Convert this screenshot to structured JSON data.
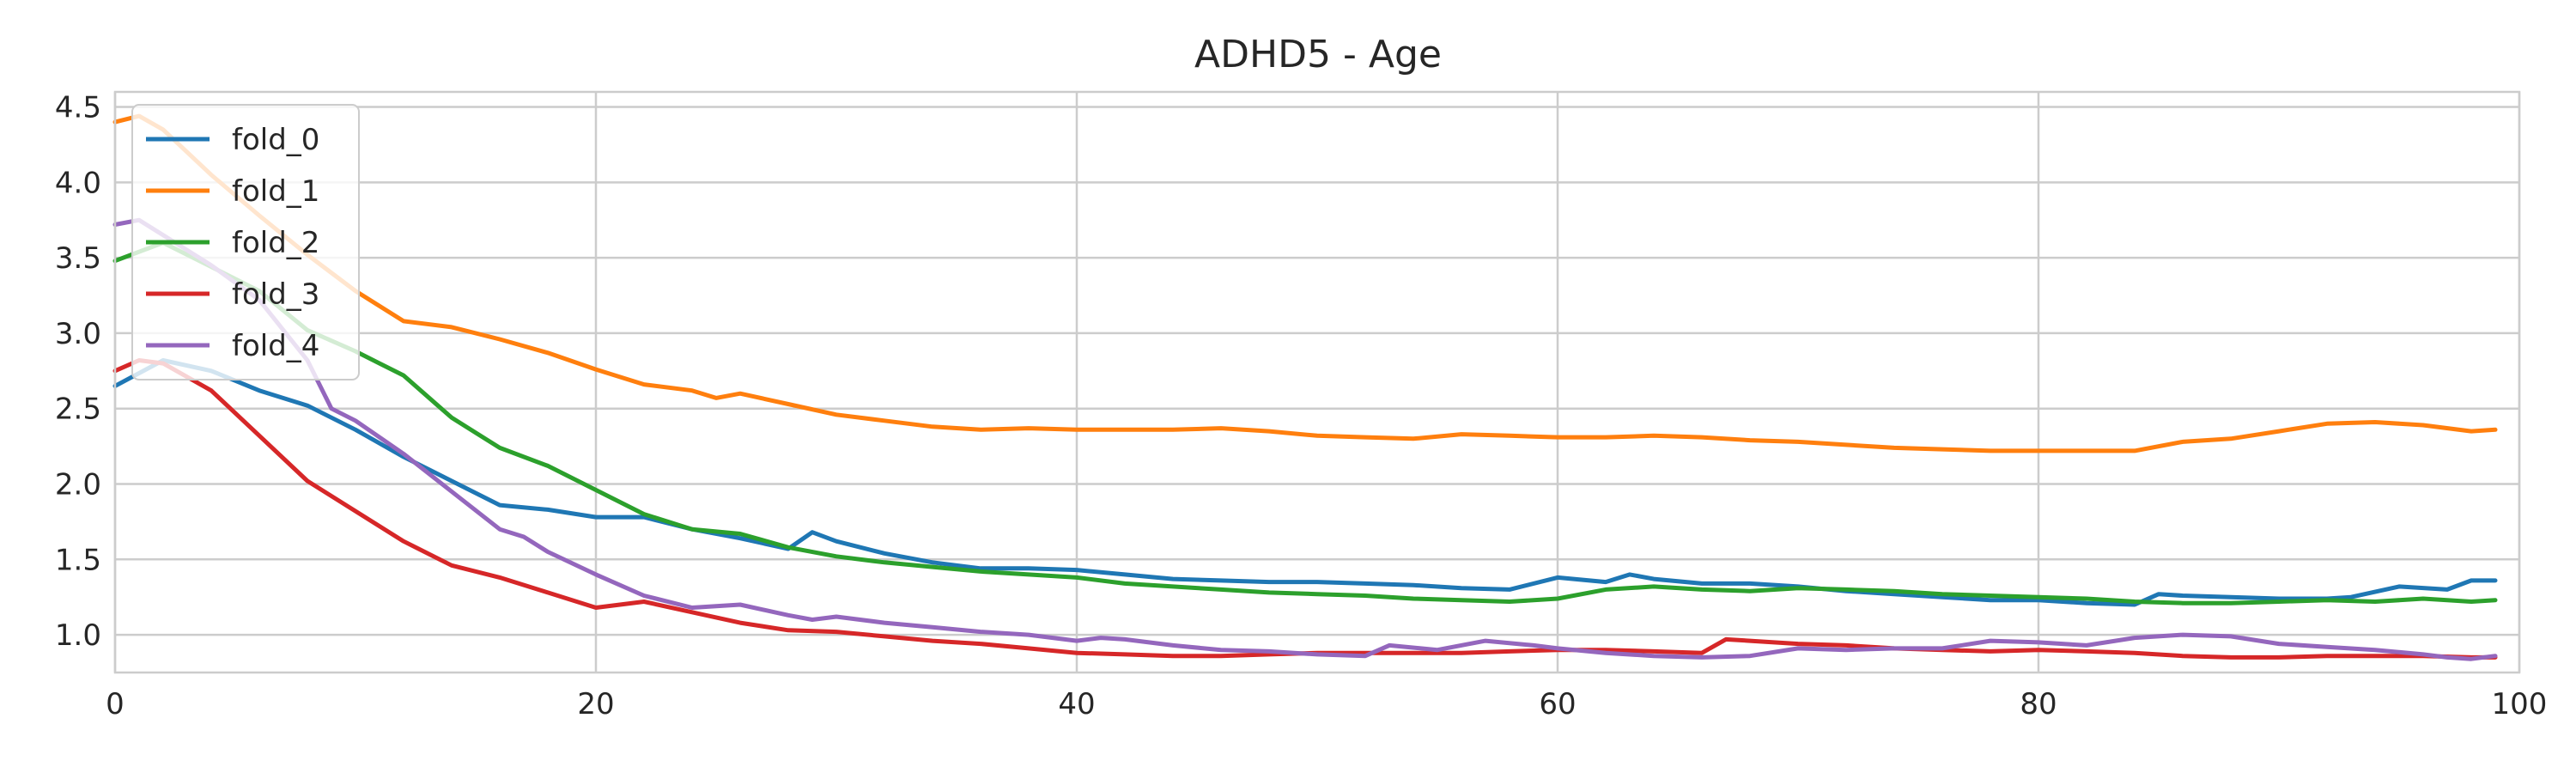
{
  "chart_data": {
    "type": "line",
    "title": "ADHD5 - Age",
    "xlabel": "",
    "ylabel": "",
    "xlim": [
      0,
      100
    ],
    "ylim": [
      0.75,
      4.6
    ],
    "x_ticks": [
      0,
      20,
      40,
      60,
      80,
      100
    ],
    "x_tick_labels": [
      "0",
      "20",
      "40",
      "60",
      "80",
      "100"
    ],
    "y_ticks": [
      1.0,
      1.5,
      2.0,
      2.5,
      3.0,
      3.5,
      4.0,
      4.5
    ],
    "y_tick_labels": [
      "1.0",
      "1.5",
      "2.0",
      "2.5",
      "3.0",
      "3.5",
      "4.0",
      "4.5"
    ],
    "grid": true,
    "legend_position": "top-left",
    "series": [
      {
        "name": "fold_0",
        "color": "#1f77b4",
        "x": [
          0,
          2,
          4,
          6,
          8,
          10,
          12,
          14,
          16,
          18,
          20,
          22,
          24,
          26,
          28,
          29,
          30,
          32,
          34,
          36,
          38,
          40,
          42,
          44,
          46,
          48,
          50,
          52,
          54,
          56,
          58,
          60,
          62,
          63,
          64,
          66,
          68,
          70,
          72,
          74,
          76,
          78,
          80,
          82,
          84,
          85,
          86,
          88,
          90,
          92,
          93,
          95,
          97,
          98,
          99
        ],
        "y": [
          2.65,
          2.82,
          2.75,
          2.62,
          2.52,
          2.36,
          2.18,
          2.02,
          1.86,
          1.83,
          1.78,
          1.78,
          1.7,
          1.64,
          1.57,
          1.68,
          1.62,
          1.54,
          1.48,
          1.44,
          1.44,
          1.43,
          1.4,
          1.37,
          1.36,
          1.35,
          1.35,
          1.34,
          1.33,
          1.31,
          1.3,
          1.38,
          1.35,
          1.4,
          1.37,
          1.34,
          1.34,
          1.32,
          1.29,
          1.27,
          1.25,
          1.23,
          1.23,
          1.21,
          1.2,
          1.27,
          1.26,
          1.25,
          1.24,
          1.24,
          1.25,
          1.32,
          1.3,
          1.36,
          1.36
        ]
      },
      {
        "name": "fold_1",
        "color": "#ff7f0e",
        "x": [
          0,
          1,
          2,
          4,
          6,
          8,
          10,
          12,
          14,
          16,
          18,
          20,
          22,
          24,
          25,
          26,
          28,
          30,
          32,
          34,
          36,
          38,
          40,
          42,
          44,
          46,
          48,
          50,
          52,
          54,
          56,
          58,
          60,
          62,
          64,
          66,
          68,
          70,
          72,
          74,
          76,
          78,
          80,
          82,
          84,
          86,
          88,
          90,
          92,
          94,
          96,
          98,
          99
        ],
        "y": [
          4.4,
          4.44,
          4.35,
          4.05,
          3.78,
          3.52,
          3.28,
          3.08,
          3.04,
          2.96,
          2.87,
          2.76,
          2.66,
          2.62,
          2.57,
          2.6,
          2.53,
          2.46,
          2.42,
          2.38,
          2.36,
          2.37,
          2.36,
          2.36,
          2.36,
          2.37,
          2.35,
          2.32,
          2.31,
          2.3,
          2.33,
          2.32,
          2.31,
          2.31,
          2.32,
          2.31,
          2.29,
          2.28,
          2.26,
          2.24,
          2.23,
          2.22,
          2.22,
          2.22,
          2.22,
          2.28,
          2.3,
          2.35,
          2.4,
          2.41,
          2.39,
          2.35,
          2.36
        ]
      },
      {
        "name": "fold_2",
        "color": "#2ca02c",
        "x": [
          0,
          2,
          4,
          6,
          8,
          10,
          11,
          12,
          14,
          16,
          18,
          20,
          22,
          24,
          26,
          28,
          30,
          32,
          34,
          36,
          38,
          40,
          42,
          44,
          46,
          48,
          50,
          52,
          54,
          56,
          58,
          60,
          62,
          64,
          66,
          68,
          70,
          72,
          74,
          76,
          78,
          80,
          82,
          84,
          86,
          88,
          90,
          92,
          94,
          96,
          98,
          99
        ],
        "y": [
          3.48,
          3.6,
          3.44,
          3.28,
          3.02,
          2.88,
          2.8,
          2.72,
          2.44,
          2.24,
          2.12,
          1.96,
          1.8,
          1.7,
          1.67,
          1.58,
          1.52,
          1.48,
          1.45,
          1.42,
          1.4,
          1.38,
          1.34,
          1.32,
          1.3,
          1.28,
          1.27,
          1.26,
          1.24,
          1.23,
          1.22,
          1.24,
          1.3,
          1.32,
          1.3,
          1.29,
          1.31,
          1.3,
          1.29,
          1.27,
          1.26,
          1.25,
          1.24,
          1.22,
          1.21,
          1.21,
          1.22,
          1.23,
          1.22,
          1.24,
          1.22,
          1.23
        ]
      },
      {
        "name": "fold_3",
        "color": "#d62728",
        "x": [
          0,
          1,
          2,
          4,
          6,
          8,
          10,
          12,
          14,
          16,
          18,
          20,
          22,
          24,
          26,
          28,
          30,
          32,
          34,
          36,
          38,
          40,
          42,
          44,
          46,
          48,
          50,
          52,
          54,
          56,
          58,
          60,
          62,
          64,
          66,
          67,
          68,
          70,
          72,
          74,
          76,
          78,
          80,
          82,
          84,
          86,
          88,
          90,
          92,
          94,
          96,
          98,
          99
        ],
        "y": [
          2.75,
          2.82,
          2.8,
          2.62,
          2.32,
          2.02,
          1.82,
          1.62,
          1.46,
          1.38,
          1.28,
          1.18,
          1.22,
          1.15,
          1.08,
          1.03,
          1.02,
          0.99,
          0.96,
          0.94,
          0.91,
          0.88,
          0.87,
          0.86,
          0.86,
          0.87,
          0.88,
          0.88,
          0.88,
          0.88,
          0.89,
          0.9,
          0.9,
          0.89,
          0.88,
          0.97,
          0.96,
          0.94,
          0.93,
          0.91,
          0.9,
          0.89,
          0.9,
          0.89,
          0.88,
          0.86,
          0.85,
          0.85,
          0.86,
          0.86,
          0.86,
          0.85,
          0.85
        ]
      },
      {
        "name": "fold_4",
        "color": "#9467bd",
        "x": [
          0,
          1,
          2,
          4,
          6,
          8,
          9,
          10,
          12,
          14,
          16,
          17,
          18,
          20,
          22,
          24,
          26,
          28,
          29,
          30,
          32,
          34,
          36,
          38,
          40,
          41,
          42,
          44,
          46,
          48,
          50,
          52,
          53,
          55,
          57,
          59,
          60,
          62,
          64,
          66,
          68,
          70,
          72,
          74,
          76,
          78,
          80,
          82,
          84,
          86,
          88,
          90,
          92,
          94,
          96,
          97,
          98,
          99
        ],
        "y": [
          3.72,
          3.75,
          3.65,
          3.45,
          3.22,
          2.82,
          2.5,
          2.42,
          2.2,
          1.95,
          1.7,
          1.65,
          1.55,
          1.4,
          1.26,
          1.18,
          1.2,
          1.13,
          1.1,
          1.12,
          1.08,
          1.05,
          1.02,
          1.0,
          0.96,
          0.98,
          0.97,
          0.93,
          0.9,
          0.89,
          0.87,
          0.86,
          0.93,
          0.9,
          0.96,
          0.93,
          0.91,
          0.88,
          0.86,
          0.85,
          0.86,
          0.91,
          0.9,
          0.91,
          0.91,
          0.96,
          0.95,
          0.93,
          0.98,
          1.0,
          0.99,
          0.94,
          0.92,
          0.9,
          0.87,
          0.85,
          0.84,
          0.86
        ]
      }
    ]
  }
}
